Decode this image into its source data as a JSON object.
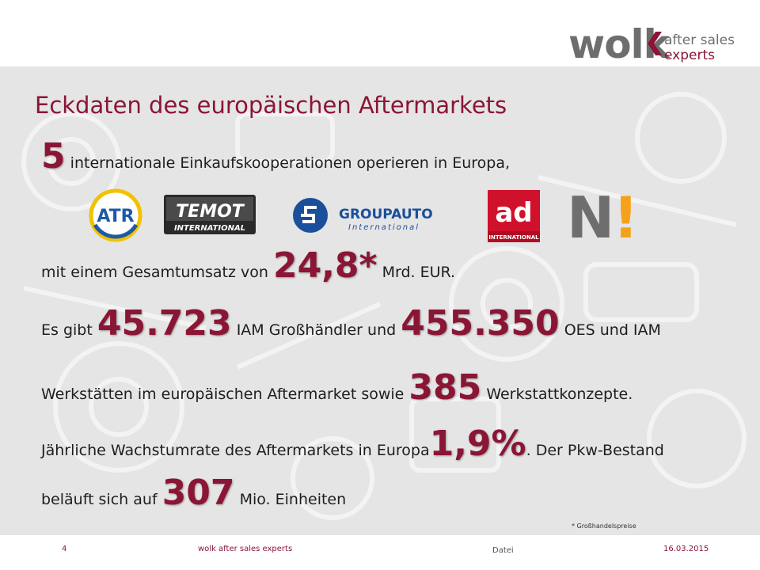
{
  "logo": {
    "main": "wolk",
    "line1": "after sales",
    "line2": "experts"
  },
  "title": "Eckdaten des europäischen Aftermarkets",
  "line1": {
    "big": "5",
    "text": "internationale Einkaufskooperationen operieren in Europa,"
  },
  "partners": {
    "atr": {
      "name": "ATR"
    },
    "temot": {
      "name": "TEMOT",
      "sub": "INTERNATIONAL"
    },
    "groupauto": {
      "name": "GROUPAUTO",
      "sub": "International"
    },
    "ad": {
      "name": "ad",
      "sub": "INTERNATIONAL"
    },
    "nexus": {
      "name": "N",
      "mark": "!"
    }
  },
  "line2": {
    "pre": "mit einem Gesamtumsatz von",
    "big": "24,8*",
    "post": "Mrd. EUR."
  },
  "line3": {
    "pre": "Es gibt",
    "big1": "45.723",
    "mid": "IAM Großhändler  und",
    "big2": "455.350",
    "post": "OES und IAM"
  },
  "line4": {
    "pre": "Werkstätten im europäischen Aftermarket sowie",
    "big": "385",
    "post": "Werkstattkonzepte."
  },
  "line5": {
    "pre": "Jährliche Wachstumrate des Aftermarkets in Europa",
    "big": "1,9%",
    "post": ". Der Pkw-Bestand"
  },
  "line6": {
    "pre": "beläuft sich auf",
    "big": "307",
    "post": "Mio. Einheiten"
  },
  "footnote": "* Großhandelspreise",
  "footer": {
    "page": "4",
    "company": "wolk after sales experts",
    "file": "Datei",
    "date": "16.03.2015"
  },
  "colors": {
    "accent": "#8b1535",
    "logo_gray": "#6e6e6e",
    "background_band": "#e5e5e5",
    "atr_yellow": "#f2c200",
    "atr_blue": "#1c5aa8",
    "groupauto_blue": "#1a4f9c",
    "ad_red": "#d0112b",
    "nexus_orange": "#f5a21b"
  }
}
